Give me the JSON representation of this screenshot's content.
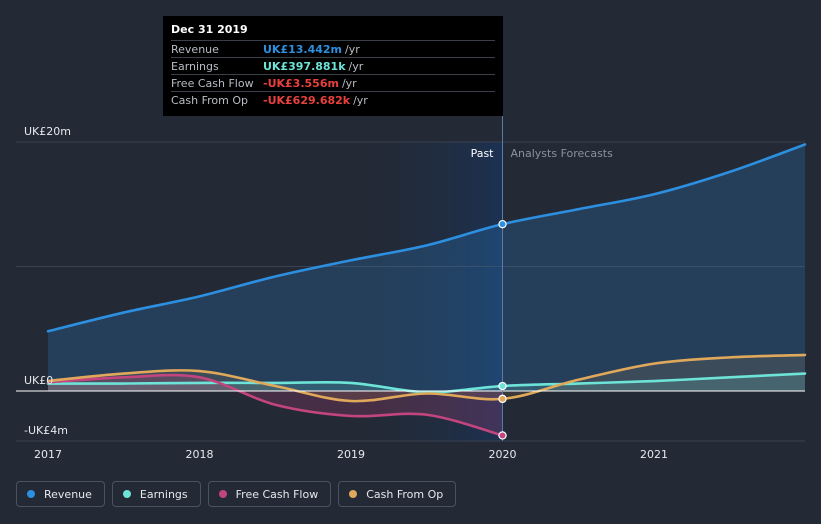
{
  "tooltip": {
    "date": "Dec 31 2019",
    "rows": [
      {
        "name": "Revenue",
        "value": "UK£13.442m",
        "unit": "/yr",
        "color": "#2d8fe0"
      },
      {
        "name": "Earnings",
        "value": "UK£397.881k",
        "unit": "/yr",
        "color": "#6ee3d7"
      },
      {
        "name": "Free Cash Flow",
        "value": "-UK£3.556m",
        "unit": "/yr",
        "color": "#e8403c"
      },
      {
        "name": "Cash From Op",
        "value": "-UK£629.682k",
        "unit": "/yr",
        "color": "#e8403c"
      }
    ]
  },
  "legend": [
    {
      "label": "Revenue",
      "color": "#2d8fe0"
    },
    {
      "label": "Earnings",
      "color": "#6ee3d7"
    },
    {
      "label": "Free Cash Flow",
      "color": "#c2457e"
    },
    {
      "label": "Cash From Op",
      "color": "#e0a85a"
    }
  ],
  "chart_data": {
    "type": "line",
    "title": "",
    "xlabel": "",
    "ylabel": "",
    "x_ticks": [
      "2017",
      "2018",
      "2019",
      "2020",
      "2021"
    ],
    "y_ticks": [
      {
        "value": 20,
        "label": "UK£20m"
      },
      {
        "value": 0,
        "label": "UK£0"
      },
      {
        "value": -4,
        "label": "-UK£4m"
      }
    ],
    "ylim": [
      -4,
      20
    ],
    "xlim": [
      2017,
      2021.99
    ],
    "divider_x": 2020,
    "past_label": "Past",
    "forecast_label": "Analysts Forecasts",
    "series": [
      {
        "name": "Revenue",
        "color": "#2d8fe0",
        "x": [
          2017,
          2017.5,
          2018,
          2018.5,
          2019,
          2019.5,
          2020,
          2020.5,
          2021,
          2021.5,
          2022
        ],
        "y": [
          4.8,
          6.3,
          7.6,
          9.2,
          10.5,
          11.7,
          13.4,
          14.6,
          15.8,
          17.6,
          19.8
        ]
      },
      {
        "name": "Earnings",
        "color": "#6ee3d7",
        "x": [
          2017,
          2017.5,
          2018,
          2018.5,
          2019,
          2019.5,
          2020,
          2020.5,
          2021,
          2021.5,
          2022
        ],
        "y": [
          0.6,
          0.6,
          0.65,
          0.65,
          0.65,
          -0.1,
          0.4,
          0.6,
          0.8,
          1.1,
          1.4
        ]
      },
      {
        "name": "Free Cash Flow",
        "color": "#c2457e",
        "x": [
          2017,
          2017.5,
          2018,
          2018.5,
          2019,
          2019.5,
          2020
        ],
        "y": [
          0.7,
          1.1,
          1.1,
          -1.1,
          -2.0,
          -1.9,
          -3.556
        ]
      },
      {
        "name": "Cash From Op",
        "color": "#e0a85a",
        "x": [
          2017,
          2017.5,
          2018,
          2018.5,
          2019,
          2019.5,
          2020,
          2020.5,
          2021,
          2021.5,
          2022
        ],
        "y": [
          0.8,
          1.4,
          1.6,
          0.4,
          -0.8,
          -0.2,
          -0.63,
          0.9,
          2.2,
          2.7,
          2.9
        ]
      }
    ]
  }
}
